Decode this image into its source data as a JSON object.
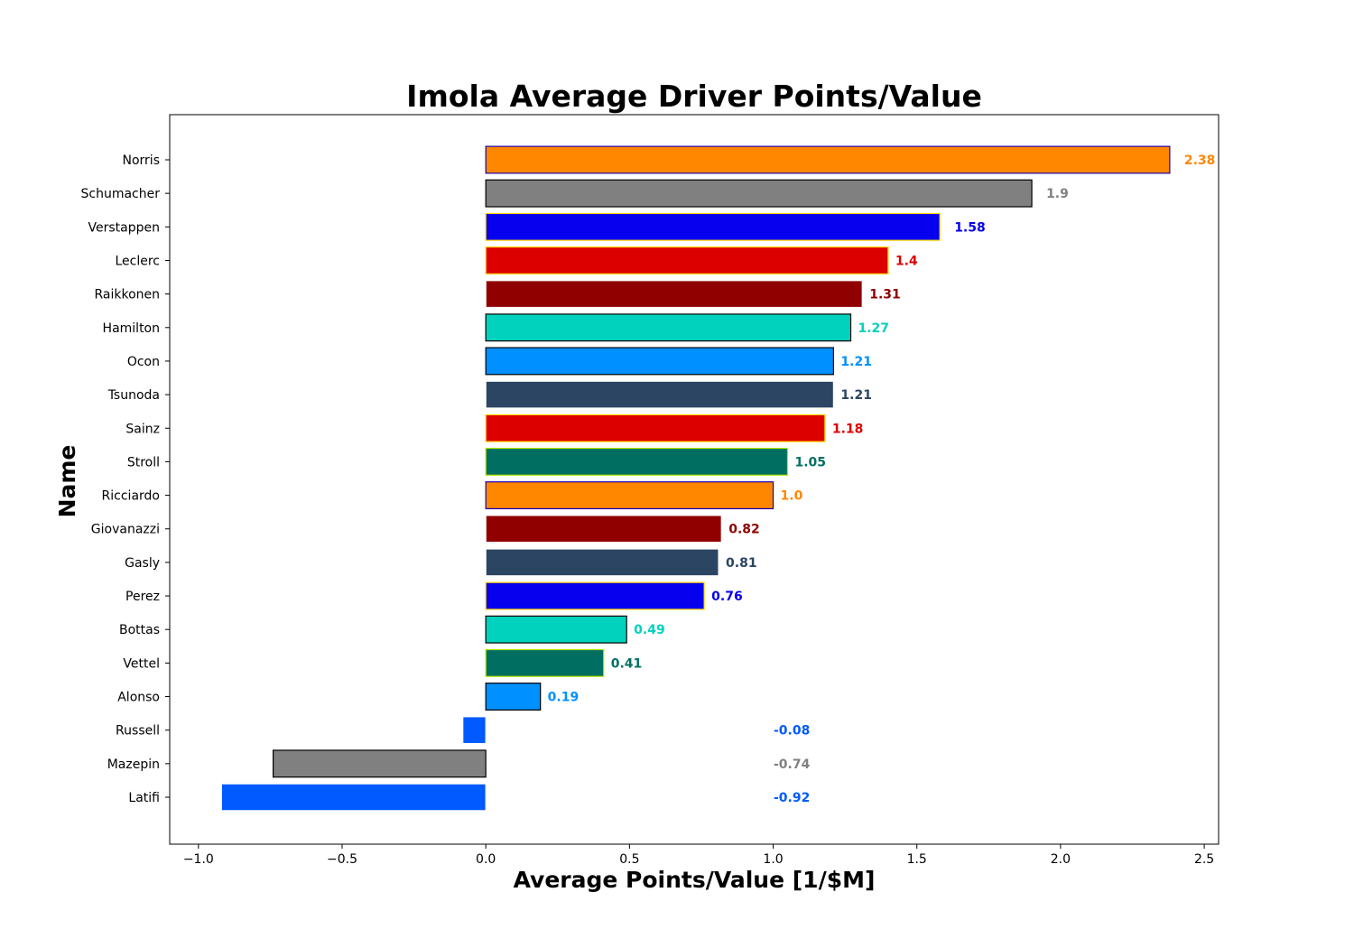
{
  "chart_data": {
    "type": "bar",
    "orientation": "horizontal",
    "title": "Imola Average Driver Points/Value",
    "xlabel": "Average Points/Value [1/$M]",
    "ylabel": "Name",
    "xlim": [
      -1.1,
      2.55
    ],
    "xticks": [
      -1.0,
      -0.5,
      0.0,
      0.5,
      1.0,
      1.5,
      2.0,
      2.5
    ],
    "xtick_labels": [
      "−1.0",
      "−0.5",
      "0.0",
      "0.5",
      "1.0",
      "1.5",
      "2.0",
      "2.5"
    ],
    "grid": false,
    "bars": [
      {
        "name": "Norris",
        "value": 2.38,
        "label": "2.38",
        "fill": "#ff8700",
        "edge": "#1a00b0",
        "label_color": "#ff8700"
      },
      {
        "name": "Schumacher",
        "value": 1.9,
        "label": "1.9",
        "fill": "#808080",
        "edge": "#000000",
        "label_color": "#808080"
      },
      {
        "name": "Verstappen",
        "value": 1.58,
        "label": "1.58",
        "fill": "#0600ef",
        "edge": "#ffd800",
        "label_color": "#0600ef"
      },
      {
        "name": "Leclerc",
        "value": 1.4,
        "label": "1.4",
        "fill": "#dc0000",
        "edge": "#ffd800",
        "label_color": "#dc0000"
      },
      {
        "name": "Raikkonen",
        "value": 1.31,
        "label": "1.31",
        "fill": "#900000",
        "edge": "#ffffff",
        "label_color": "#900000"
      },
      {
        "name": "Hamilton",
        "value": 1.27,
        "label": "1.27",
        "fill": "#00d2be",
        "edge": "#000000",
        "label_color": "#00d2be"
      },
      {
        "name": "Ocon",
        "value": 1.21,
        "label": "1.21",
        "fill": "#0090ff",
        "edge": "#000000",
        "label_color": "#0090ff"
      },
      {
        "name": "Tsunoda",
        "value": 1.21,
        "label": "1.21",
        "fill": "#2b4562",
        "edge": "#ffffff",
        "label_color": "#2b4562"
      },
      {
        "name": "Sainz",
        "value": 1.18,
        "label": "1.18",
        "fill": "#dc0000",
        "edge": "#ffd800",
        "label_color": "#dc0000"
      },
      {
        "name": "Stroll",
        "value": 1.05,
        "label": "1.05",
        "fill": "#006f62",
        "edge": "#b6e800",
        "label_color": "#006f62"
      },
      {
        "name": "Ricciardo",
        "value": 1.0,
        "label": "1.0",
        "fill": "#ff8700",
        "edge": "#1a00b0",
        "label_color": "#ff8700"
      },
      {
        "name": "Giovanazzi",
        "value": 0.82,
        "label": "0.82",
        "fill": "#900000",
        "edge": "#ffffff",
        "label_color": "#900000"
      },
      {
        "name": "Gasly",
        "value": 0.81,
        "label": "0.81",
        "fill": "#2b4562",
        "edge": "#ffffff",
        "label_color": "#2b4562"
      },
      {
        "name": "Perez",
        "value": 0.76,
        "label": "0.76",
        "fill": "#0600ef",
        "edge": "#ffd800",
        "label_color": "#0600ef"
      },
      {
        "name": "Bottas",
        "value": 0.49,
        "label": "0.49",
        "fill": "#00d2be",
        "edge": "#000000",
        "label_color": "#00d2be"
      },
      {
        "name": "Vettel",
        "value": 0.41,
        "label": "0.41",
        "fill": "#006f62",
        "edge": "#b6e800",
        "label_color": "#006f62"
      },
      {
        "name": "Alonso",
        "value": 0.19,
        "label": "0.19",
        "fill": "#0090ff",
        "edge": "#000000",
        "label_color": "#0090ff"
      },
      {
        "name": "Russell",
        "value": -0.08,
        "label": "-0.08",
        "fill": "#005aff",
        "edge": "#ffffff",
        "label_color": "#005aff"
      },
      {
        "name": "Mazepin",
        "value": -0.74,
        "label": "-0.74",
        "fill": "#808080",
        "edge": "#000000",
        "label_color": "#808080"
      },
      {
        "name": "Latifi",
        "value": -0.92,
        "label": "-0.92",
        "fill": "#005aff",
        "edge": "#ffffff",
        "label_color": "#005aff"
      }
    ]
  }
}
